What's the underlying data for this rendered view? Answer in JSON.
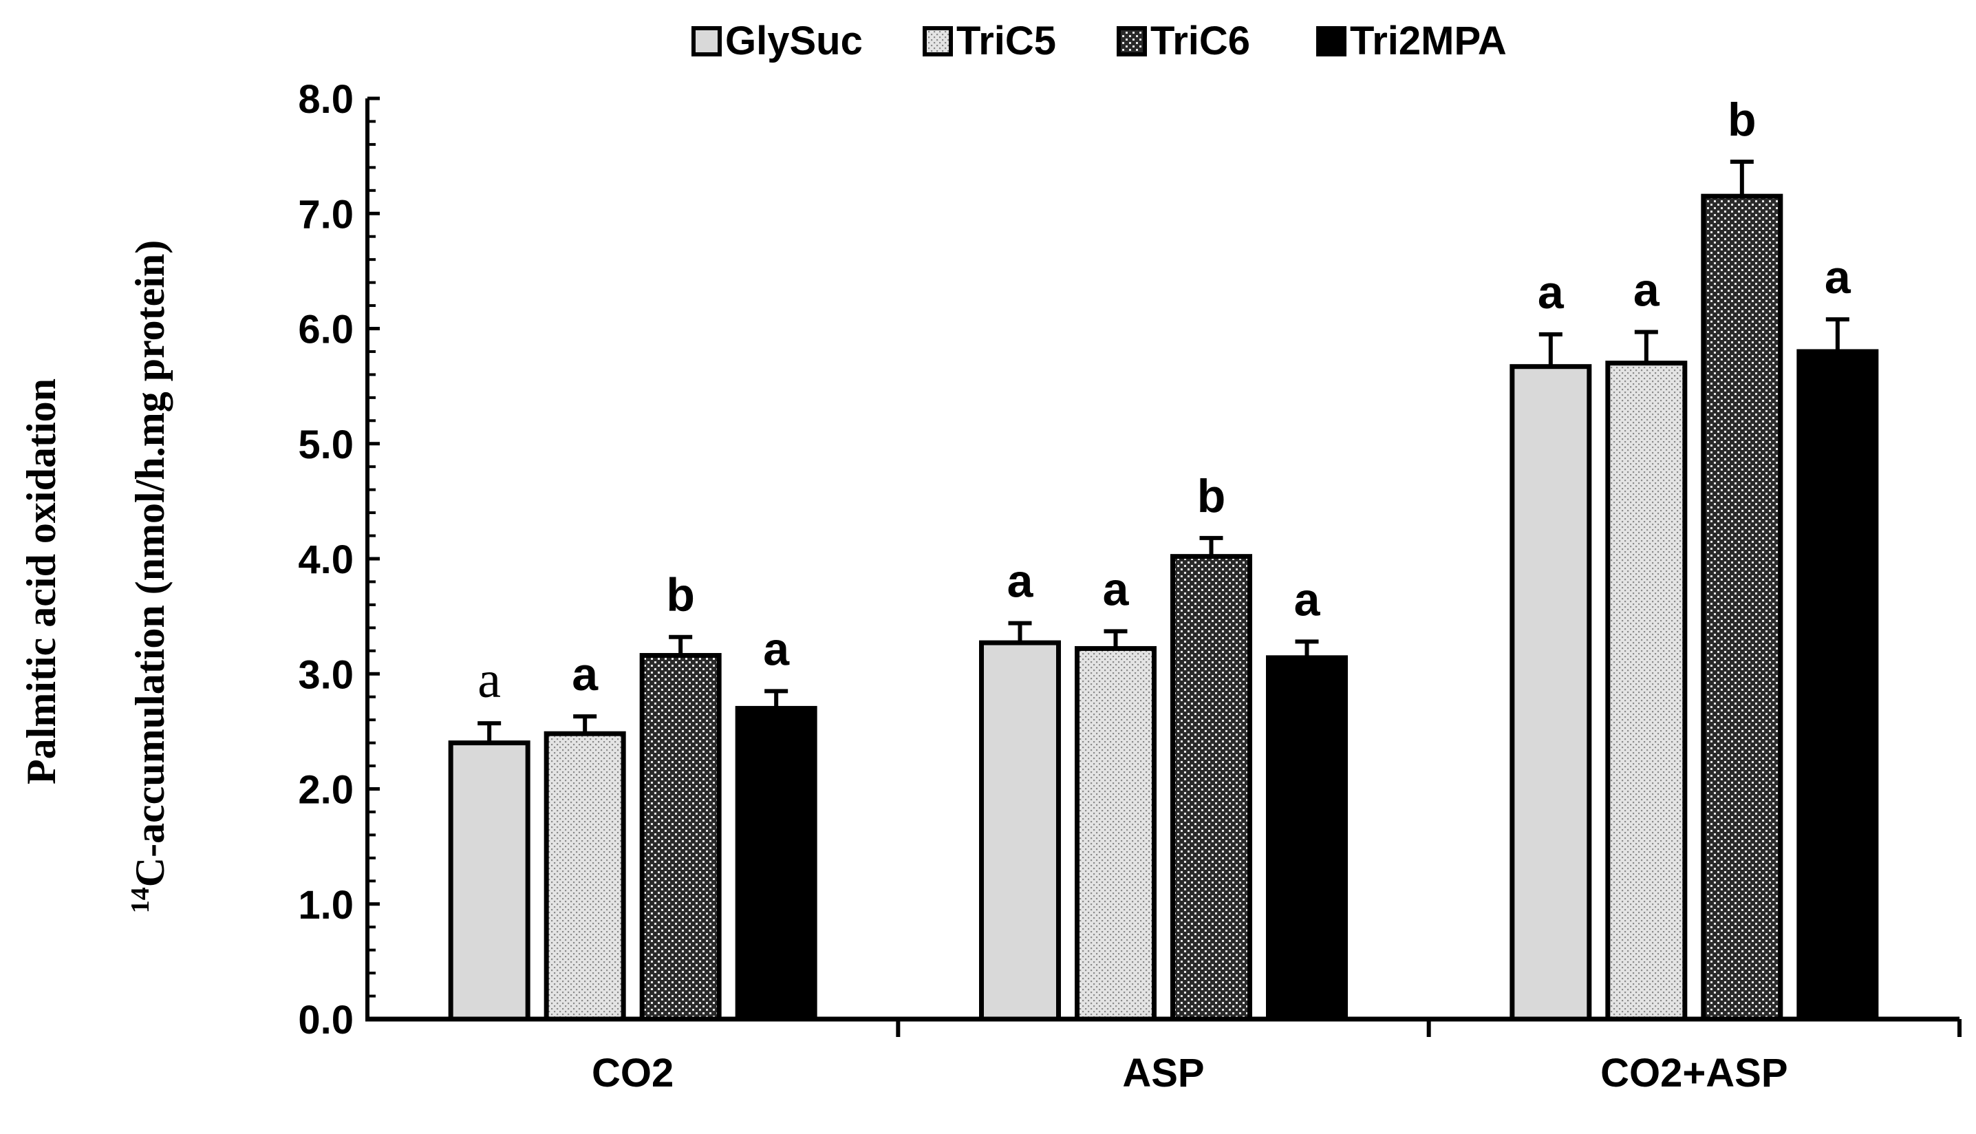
{
  "chart_data": {
    "type": "bar",
    "title": "",
    "xlabel": "",
    "ylabel_line1": "Palmitic acid oxidation",
    "ylabel_sup": "14",
    "ylabel_line2": "C-accumulation (nmol/h.mg protein)",
    "ylim": [
      0,
      8
    ],
    "yticks": [
      "0.0",
      "1.0",
      "2.0",
      "3.0",
      "4.0",
      "5.0",
      "6.0",
      "7.0",
      "8.0"
    ],
    "categories": [
      "CO2",
      "ASP",
      "CO2+ASP"
    ],
    "legend_position": "top",
    "series": [
      {
        "name": "GlySuc",
        "fill": "#d9d9d9",
        "pattern": "solid",
        "values": [
          2.4,
          3.27,
          5.67
        ],
        "errors": [
          0.17,
          0.17,
          0.28
        ],
        "labels": [
          "a",
          "a",
          "a"
        ]
      },
      {
        "name": "TriC5",
        "fill": "#cfcfcf",
        "pattern": "fine-dots",
        "values": [
          2.48,
          3.22,
          5.7
        ],
        "errors": [
          0.15,
          0.15,
          0.27
        ],
        "labels": [
          "a",
          "a",
          "a"
        ]
      },
      {
        "name": "TriC6",
        "fill": "#707070",
        "pattern": "dark-dots",
        "values": [
          3.16,
          4.02,
          7.15
        ],
        "errors": [
          0.16,
          0.16,
          0.3
        ],
        "labels": [
          "b",
          "b",
          "b"
        ]
      },
      {
        "name": "Tri2MPA",
        "fill": "#000000",
        "pattern": "solid",
        "values": [
          2.7,
          3.14,
          5.8
        ],
        "errors": [
          0.15,
          0.14,
          0.28
        ],
        "labels": [
          "a",
          "a",
          "a"
        ]
      }
    ]
  }
}
